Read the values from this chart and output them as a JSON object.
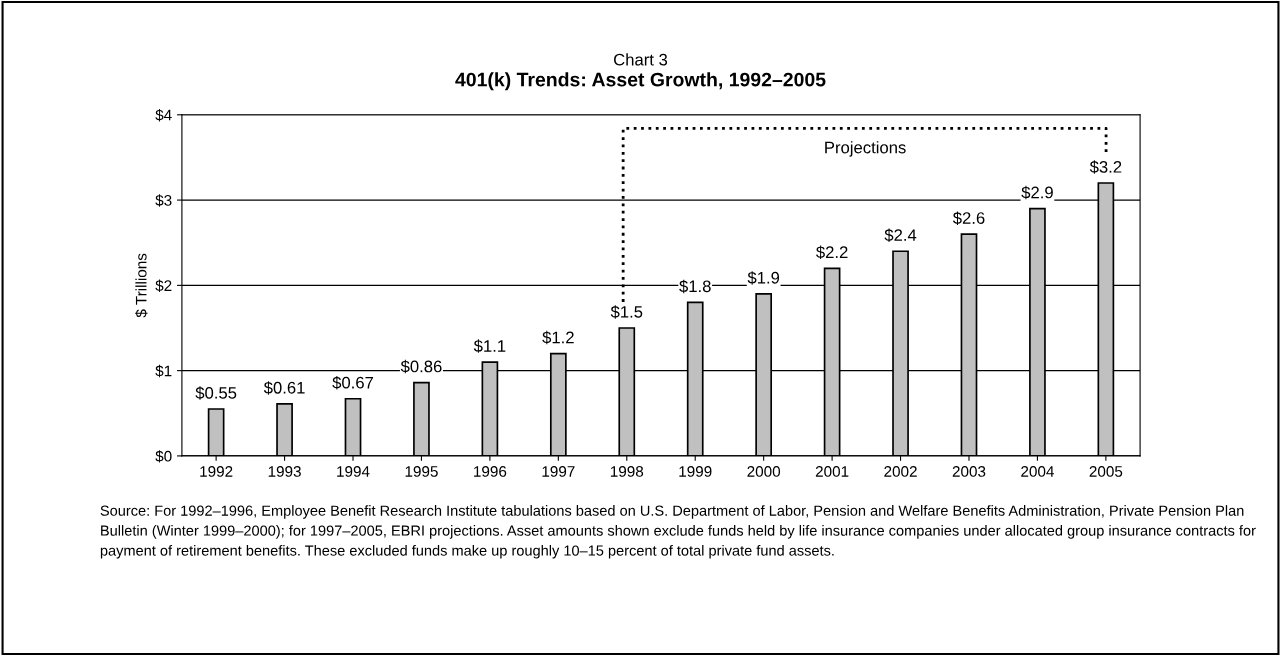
{
  "chart_data": {
    "type": "bar",
    "subtitle": "Chart 3",
    "title": "401(k) Trends: Asset Growth, 1992–2005",
    "ylabel": "$ Trillions",
    "categories": [
      "1992",
      "1993",
      "1994",
      "1995",
      "1996",
      "1997",
      "1998",
      "1999",
      "2000",
      "2001",
      "2002",
      "2003",
      "2004",
      "2005"
    ],
    "values": [
      0.55,
      0.61,
      0.67,
      0.86,
      1.1,
      1.2,
      1.5,
      1.8,
      1.9,
      2.2,
      2.4,
      2.6,
      2.9,
      3.2
    ],
    "value_labels": [
      "$0.55",
      "$0.61",
      "$0.67",
      "$0.86",
      "$1.1",
      "$1.2",
      "$1.5",
      "$1.8",
      "$1.9",
      "$2.2",
      "$2.4",
      "$2.6",
      "$2.9",
      "$3.2"
    ],
    "color": "#c0c0c0",
    "ylim": [
      0,
      4
    ],
    "yticks": [
      {
        "value": 0,
        "label": "$0"
      },
      {
        "value": 1,
        "label": "$1"
      },
      {
        "value": 2,
        "label": "$2"
      },
      {
        "value": 3,
        "label": "$3"
      },
      {
        "value": 4,
        "label": "$4"
      }
    ],
    "grid": "y",
    "annotations": [
      "Projections",
      "Source: For 1992–1996, Employee Benefit Research Institute tabulations based on U.S. Department of Labor, Pension and Welfare Benefits Administration, Private Pension Plan Bulletin (Winter 1999–2000); for 1997–2005, EBRI projections. Asset amounts shown exclude funds held by life insurance companies under allocated group insurance contracts for payment of retirement benefits. These excluded funds make up roughly 10–15 percent of total private fund assets."
    ]
  }
}
